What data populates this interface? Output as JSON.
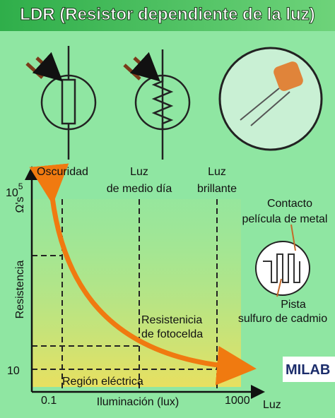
{
  "header": {
    "title": "LDR (Resistor dependiente de la luz)"
  },
  "graph": {
    "y_axis_label": [
      "Resistencia",
      "Ω's"
    ],
    "y_top": {
      "base": "10",
      "exponent": "5"
    },
    "y_bottom": "10",
    "x_left": "0.1",
    "x_right": "1000",
    "x_axis_label": "Iluminación (lux)",
    "x_axis_end": "Luz",
    "zones": [
      [
        "Oscuridad"
      ],
      [
        "Luz",
        "de medio día"
      ],
      [
        "Luz",
        "brillante"
      ]
    ],
    "curve_label": [
      "Resistenicia",
      "de fotocelda"
    ],
    "region_label": "Región eléctrica"
  },
  "detail": {
    "contact": [
      "Contacto",
      "película de metal"
    ],
    "track": [
      "Pista",
      "sulfuro de cadmio"
    ]
  },
  "brand": "MILAB"
}
